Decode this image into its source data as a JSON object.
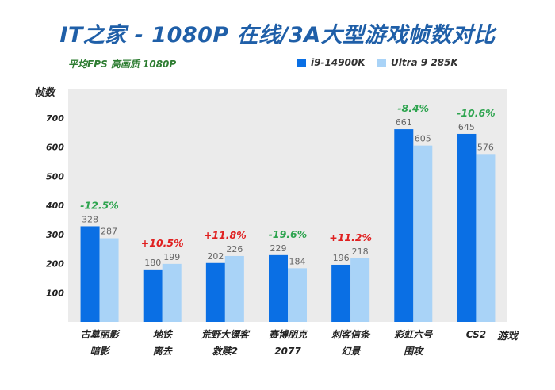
{
  "chart_data": {
    "type": "bar",
    "title": "IT之家 - 1080P 在线/3A大型游戏帧数对比",
    "subtitle": "平均FPS  高画质  1080P",
    "ylabel": "帧数",
    "xlabel": "游戏",
    "ylim": [
      0,
      800
    ],
    "yticks": [
      100,
      200,
      300,
      400,
      500,
      600,
      700
    ],
    "categories": [
      [
        "古墓丽影",
        "暗影"
      ],
      [
        "地铁",
        "离去"
      ],
      [
        "荒野大镖客",
        "救赎2"
      ],
      [
        "赛博朋克",
        "2077"
      ],
      [
        "刺客信条",
        "幻景"
      ],
      [
        "彩虹六号",
        "围攻"
      ],
      [
        "CS2"
      ]
    ],
    "series": [
      {
        "name": "i9-14900K",
        "color": "#0a6fe4",
        "values": [
          328,
          180,
          202,
          229,
          196,
          661,
          645
        ]
      },
      {
        "name": "Ultra 9 285K",
        "color": "#a9d3f7",
        "values": [
          287,
          199,
          226,
          184,
          218,
          605,
          576
        ]
      }
    ],
    "diffs": [
      "-12.5%",
      "+10.5%",
      "+11.8%",
      "-19.6%",
      "+11.2%",
      "-8.4%",
      "-10.6%"
    ],
    "diff_colors": {
      "positive": "#e02020",
      "negative": "#2ea44f"
    },
    "plot_background": "#ebebeb"
  }
}
